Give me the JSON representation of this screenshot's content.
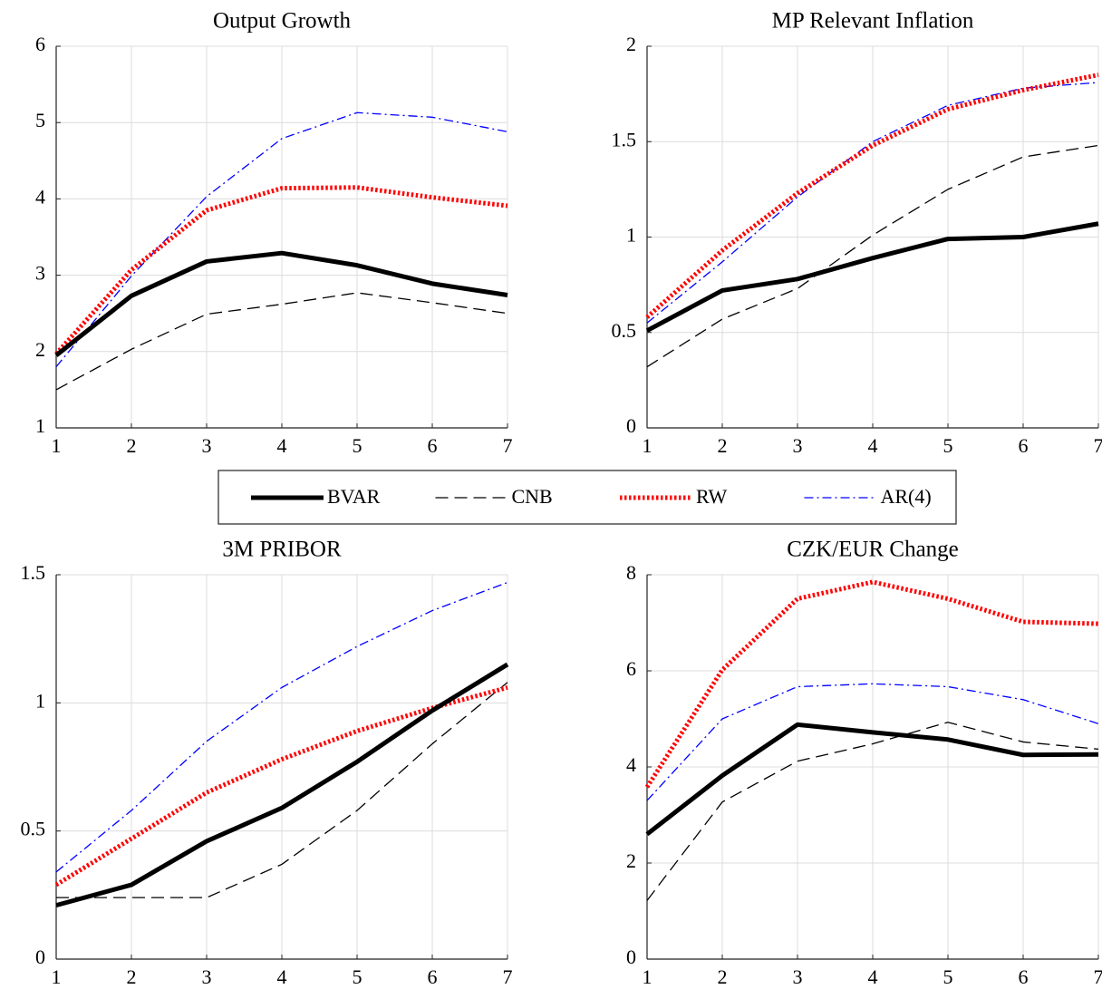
{
  "chart_data": [
    {
      "type": "line",
      "title": "Output Growth",
      "x": [
        1,
        2,
        3,
        4,
        5,
        6,
        7
      ],
      "xlim": [
        1,
        7
      ],
      "xticks": [
        1,
        2,
        3,
        4,
        5,
        6,
        7
      ],
      "ylim": [
        1,
        6
      ],
      "yticks": [
        1,
        2,
        3,
        4,
        5,
        6
      ],
      "grid": true,
      "series": [
        {
          "name": "BVAR",
          "color": "#000000",
          "dash": "solid",
          "values": [
            1.95,
            2.73,
            3.18,
            3.29,
            3.13,
            2.89,
            2.74
          ]
        },
        {
          "name": "CNB",
          "color": "#000000",
          "dash": "dashed",
          "values": [
            1.5,
            2.03,
            2.49,
            2.62,
            2.77,
            2.64,
            2.5
          ]
        },
        {
          "name": "RW",
          "color": "#ff0000",
          "dash": "dotted",
          "values": [
            1.97,
            3.07,
            3.85,
            4.14,
            4.15,
            4.02,
            3.91
          ]
        },
        {
          "name": "AR(4)",
          "color": "#0000ff",
          "dash": "dashdot",
          "values": [
            1.8,
            2.99,
            4.03,
            4.79,
            5.13,
            5.07,
            4.88
          ]
        }
      ]
    },
    {
      "type": "line",
      "title": "MP Relevant Inflation",
      "x": [
        1,
        2,
        3,
        4,
        5,
        6,
        7
      ],
      "xlim": [
        1,
        7
      ],
      "xticks": [
        1,
        2,
        3,
        4,
        5,
        6,
        7
      ],
      "ylim": [
        0,
        2
      ],
      "yticks": [
        0,
        0.5,
        1,
        1.5,
        2
      ],
      "grid": true,
      "series": [
        {
          "name": "BVAR",
          "color": "#000000",
          "dash": "solid",
          "values": [
            0.51,
            0.72,
            0.78,
            0.89,
            0.99,
            1.0,
            1.07
          ]
        },
        {
          "name": "CNB",
          "color": "#000000",
          "dash": "dashed",
          "values": [
            0.32,
            0.57,
            0.73,
            1.01,
            1.25,
            1.42,
            1.48
          ]
        },
        {
          "name": "RW",
          "color": "#ff0000",
          "dash": "dotted",
          "values": [
            0.58,
            0.93,
            1.23,
            1.48,
            1.67,
            1.77,
            1.85
          ]
        },
        {
          "name": "AR(4)",
          "color": "#0000ff",
          "dash": "dashdot",
          "values": [
            0.55,
            0.87,
            1.21,
            1.5,
            1.69,
            1.78,
            1.81
          ]
        }
      ]
    },
    {
      "type": "line",
      "title": "3M PRIBOR",
      "x": [
        1,
        2,
        3,
        4,
        5,
        6,
        7
      ],
      "xlim": [
        1,
        7
      ],
      "xticks": [
        1,
        2,
        3,
        4,
        5,
        6,
        7
      ],
      "ylim": [
        0,
        1.5
      ],
      "yticks": [
        0,
        0.5,
        1,
        1.5
      ],
      "grid": true,
      "series": [
        {
          "name": "BVAR",
          "color": "#000000",
          "dash": "solid",
          "values": [
            0.21,
            0.29,
            0.46,
            0.59,
            0.77,
            0.97,
            1.15
          ]
        },
        {
          "name": "CNB",
          "color": "#000000",
          "dash": "dashed",
          "values": [
            0.24,
            0.24,
            0.24,
            0.37,
            0.58,
            0.84,
            1.08
          ]
        },
        {
          "name": "RW",
          "color": "#ff0000",
          "dash": "dotted",
          "values": [
            0.29,
            0.47,
            0.65,
            0.78,
            0.89,
            0.98,
            1.06
          ]
        },
        {
          "name": "AR(4)",
          "color": "#0000ff",
          "dash": "dashdot",
          "values": [
            0.34,
            0.58,
            0.85,
            1.06,
            1.22,
            1.36,
            1.47
          ]
        }
      ]
    },
    {
      "type": "line",
      "title": "CZK/EUR Change",
      "x": [
        1,
        2,
        3,
        4,
        5,
        6,
        7
      ],
      "xlim": [
        1,
        7
      ],
      "xticks": [
        1,
        2,
        3,
        4,
        5,
        6,
        7
      ],
      "ylim": [
        0,
        8
      ],
      "yticks": [
        0,
        2,
        4,
        6,
        8
      ],
      "grid": true,
      "series": [
        {
          "name": "BVAR",
          "color": "#000000",
          "dash": "solid",
          "values": [
            2.6,
            3.82,
            4.88,
            4.72,
            4.57,
            4.25,
            4.26
          ]
        },
        {
          "name": "CNB",
          "color": "#000000",
          "dash": "dashed",
          "values": [
            1.22,
            3.27,
            4.12,
            4.48,
            4.93,
            4.52,
            4.37
          ]
        },
        {
          "name": "RW",
          "color": "#ff0000",
          "dash": "dotted",
          "values": [
            3.58,
            6.02,
            7.5,
            7.85,
            7.5,
            7.02,
            6.98
          ]
        },
        {
          "name": "AR(4)",
          "color": "#0000ff",
          "dash": "dashdot",
          "values": [
            3.3,
            5.0,
            5.67,
            5.73,
            5.67,
            5.4,
            4.9
          ]
        }
      ]
    }
  ]
}
